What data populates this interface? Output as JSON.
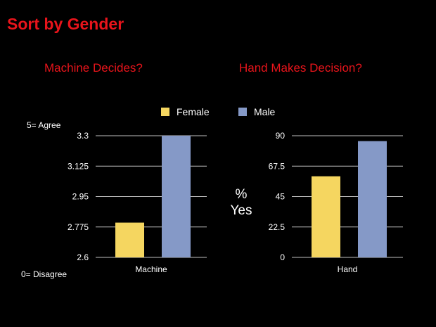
{
  "slide": {
    "title": "Sort by Gender",
    "agree_label": "5= Agree",
    "disagree_label": "0= Disagree",
    "pct_label_line1": "%",
    "pct_label_line2": "Yes"
  },
  "colors": {
    "background": "#000000",
    "title": "#e8141b",
    "female": "#f5d660",
    "male": "#8599c7",
    "grid": "#bfbfbf"
  },
  "chart_data": [
    {
      "type": "bar",
      "title": "Machine Decides?",
      "categories": [
        "Machine"
      ],
      "series": [
        {
          "name": "Female",
          "values": [
            2.8
          ]
        },
        {
          "name": "Male",
          "values": [
            3.3
          ]
        }
      ],
      "ylim": [
        2.6,
        3.3
      ],
      "yticks": [
        "3.3",
        "3.125",
        "2.95",
        "2.775",
        "2.6"
      ],
      "grid": true,
      "legend": "top"
    },
    {
      "type": "bar",
      "title": "Hand Makes Decision?",
      "categories": [
        "Hand"
      ],
      "series": [
        {
          "name": "Female",
          "values": [
            60
          ]
        },
        {
          "name": "Male",
          "values": [
            86
          ]
        }
      ],
      "ylim": [
        0,
        90
      ],
      "yticks": [
        "90",
        "67.5",
        "45",
        "22.5",
        "0"
      ],
      "grid": true,
      "legend": "top"
    }
  ]
}
